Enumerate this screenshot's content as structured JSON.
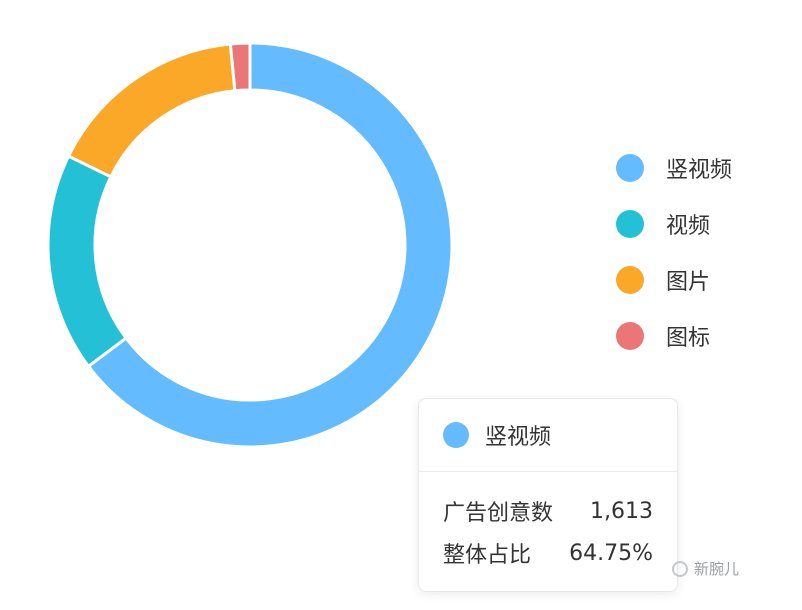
{
  "chart_data": {
    "type": "pie",
    "variant": "donut",
    "title": "",
    "slices": [
      {
        "label": "竖视频",
        "value": 64.75,
        "color": "#64bbfd"
      },
      {
        "label": "视频",
        "value": 17.5,
        "color": "#24c1d6"
      },
      {
        "label": "图片",
        "value": 16.2,
        "color": "#fba728"
      },
      {
        "label": "图标",
        "value": 1.55,
        "color": "#ea7677"
      }
    ],
    "legend_position": "right",
    "tooltip": {
      "series": "竖视频",
      "color": "#64bbfd",
      "rows": [
        {
          "label": "广告创意数",
          "value": "1,613"
        },
        {
          "label": "整体占比",
          "value": "64.75%"
        }
      ]
    }
  },
  "watermark": {
    "icon": "wechat-icon",
    "text": "新腕儿"
  }
}
